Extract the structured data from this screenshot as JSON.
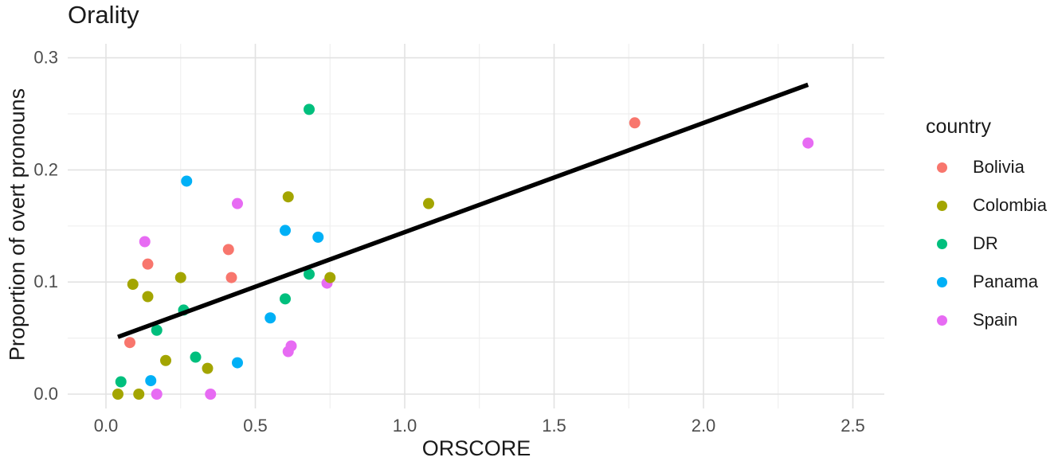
{
  "chart_data": {
    "type": "scatter",
    "title": "Orality",
    "xlabel": "ORSCORE",
    "ylabel": "Proportion of overt pronouns",
    "legend_title": "country",
    "legend_position": "right",
    "grid": "major-and-minor",
    "background": "#ffffff",
    "gridline_major_color": "#e2e2e2",
    "gridline_minor_color": "#efefef",
    "tick_label_color": "#4d4d4d",
    "xlim": [
      -0.13,
      2.6
    ],
    "ylim": [
      -0.012,
      0.313
    ],
    "x_tick_values": [
      0.0,
      0.5,
      1.0,
      1.5,
      2.0,
      2.5
    ],
    "x_tick_labels": [
      "0.0",
      "0.5",
      "1.0",
      "1.5",
      "2.0",
      "2.5"
    ],
    "x_minor_ticks": [
      0.25,
      0.75,
      1.25,
      1.75,
      2.25
    ],
    "y_tick_values": [
      0.0,
      0.1,
      0.2,
      0.3
    ],
    "y_tick_labels": [
      "0.0",
      "0.1",
      "0.2",
      "0.3"
    ],
    "y_minor_ticks": [
      0.05,
      0.15,
      0.25
    ],
    "series": [
      {
        "name": "Bolivia",
        "color": "#F8766D",
        "points": [
          [
            0.08,
            0.046
          ],
          [
            0.14,
            0.116
          ],
          [
            0.41,
            0.129
          ],
          [
            0.42,
            0.104
          ],
          [
            1.77,
            0.242
          ]
        ]
      },
      {
        "name": "Colombia",
        "color": "#A3A500",
        "points": [
          [
            0.04,
            0.0
          ],
          [
            0.09,
            0.098
          ],
          [
            0.11,
            0.0
          ],
          [
            0.14,
            0.087
          ],
          [
            0.2,
            0.03
          ],
          [
            0.25,
            0.104
          ],
          [
            0.34,
            0.023
          ],
          [
            0.61,
            0.176
          ],
          [
            0.75,
            0.104
          ],
          [
            1.08,
            0.17
          ]
        ]
      },
      {
        "name": "DR",
        "color": "#00BF7D",
        "points": [
          [
            0.05,
            0.011
          ],
          [
            0.17,
            0.057
          ],
          [
            0.26,
            0.075
          ],
          [
            0.3,
            0.033
          ],
          [
            0.6,
            0.085
          ],
          [
            0.68,
            0.107
          ],
          [
            0.68,
            0.254
          ]
        ]
      },
      {
        "name": "Panama",
        "color": "#00B0F6",
        "points": [
          [
            0.15,
            0.012
          ],
          [
            0.27,
            0.19
          ],
          [
            0.44,
            0.028
          ],
          [
            0.55,
            0.068
          ],
          [
            0.6,
            0.146
          ],
          [
            0.71,
            0.14
          ]
        ]
      },
      {
        "name": "Spain",
        "color": "#E76BF3",
        "points": [
          [
            0.13,
            0.136
          ],
          [
            0.17,
            0.0
          ],
          [
            0.35,
            0.0
          ],
          [
            0.44,
            0.17
          ],
          [
            0.61,
            0.038
          ],
          [
            0.62,
            0.043
          ],
          [
            0.74,
            0.099
          ],
          [
            2.35,
            0.224
          ]
        ]
      }
    ],
    "trend_line": {
      "color": "#000000",
      "x1": 0.04,
      "y1": 0.051,
      "x2": 2.35,
      "y2": 0.276
    }
  }
}
